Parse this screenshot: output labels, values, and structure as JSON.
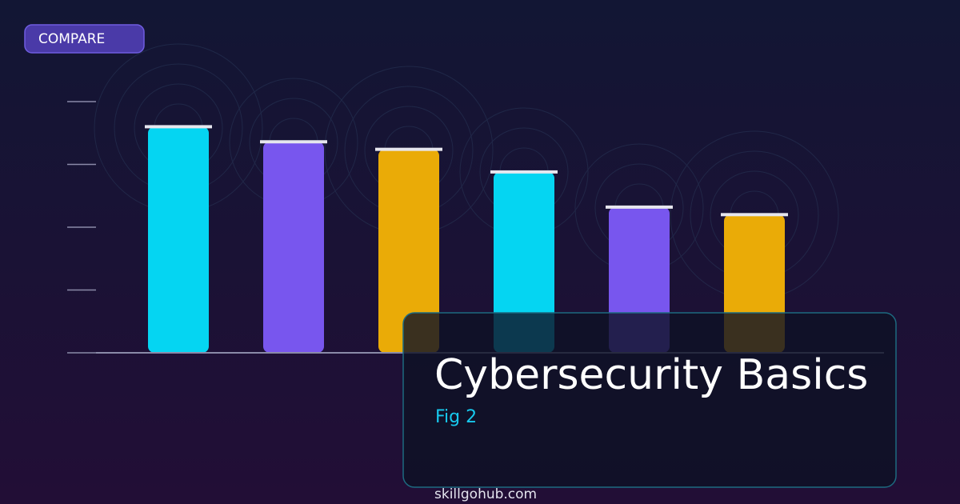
{
  "badge": "COMPARE",
  "footer": "skillgohub.com",
  "chart_data": {
    "type": "bar",
    "title": "Cybersecurity Basics",
    "subtitle": "Fig 2",
    "values": [
      90,
      84,
      81,
      72,
      58,
      55
    ],
    "colors": [
      "#05d5f2",
      "#7856ee",
      "#eaab07",
      "#05d5f2",
      "#7856ee",
      "#eaab07"
    ],
    "ylim": [
      0,
      100
    ],
    "yticks": [
      0,
      25,
      50,
      75,
      100
    ]
  }
}
